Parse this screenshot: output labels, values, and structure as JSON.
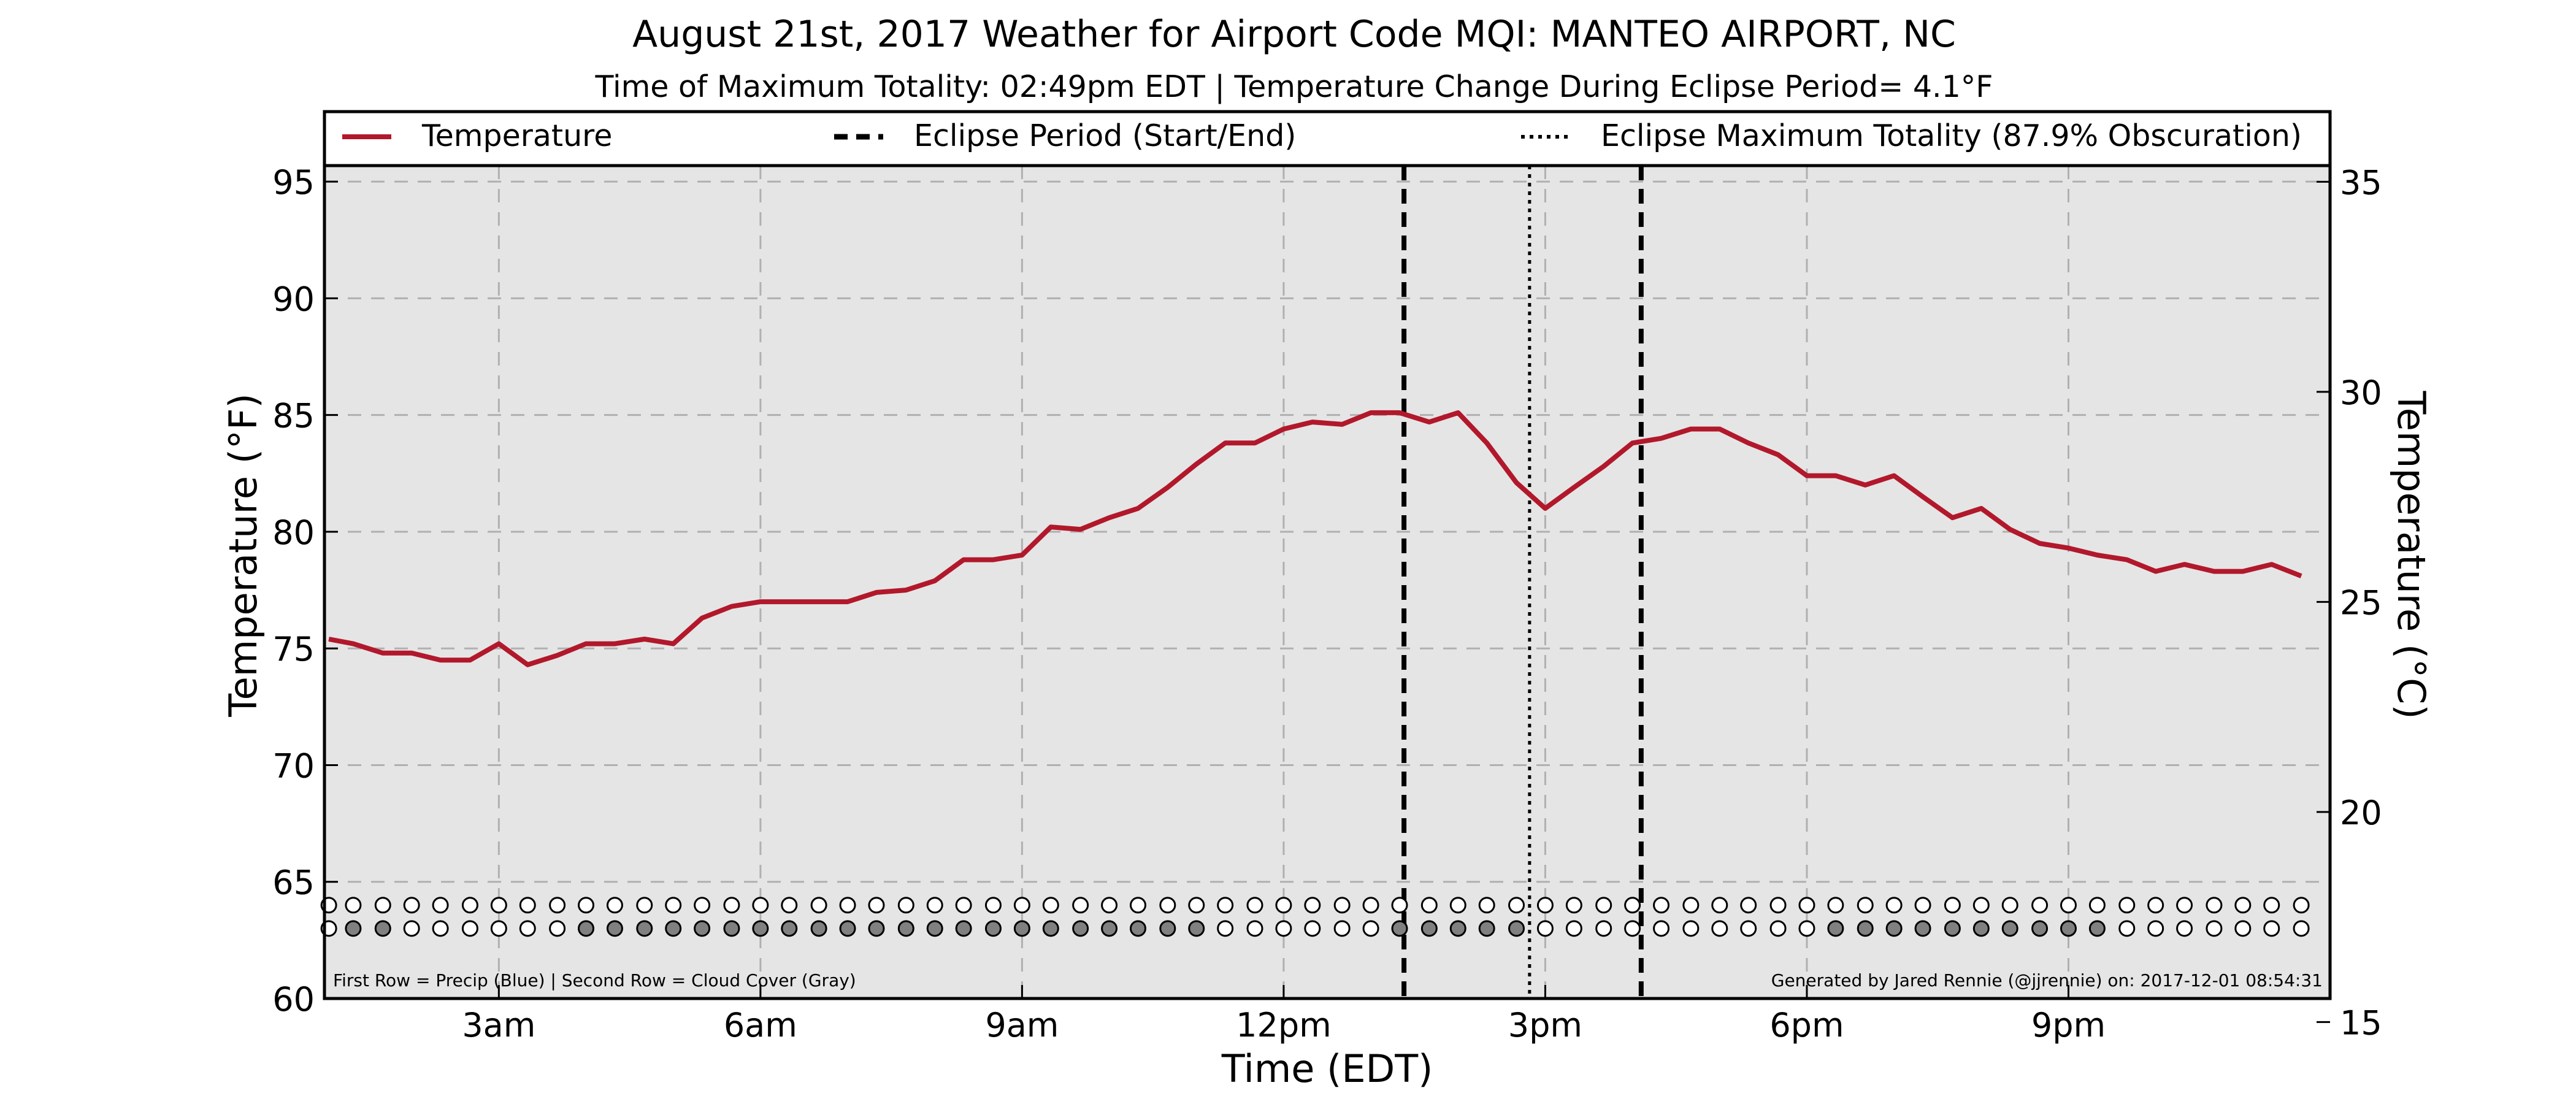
{
  "chart_data": {
    "type": "line",
    "title": "August 21st, 2017 Weather for Airport Code MQI: MANTEO AIRPORT, NC",
    "subtitle": "Time of Maximum Totality: 02:49pm EDT | Temperature Change During Eclipse Period= 4.1°F",
    "xlabel": "Time (EDT)",
    "ylabel": "Temperature (°F)",
    "ylabel_right": "Temperature (°C)",
    "xlim": [
      1,
      24
    ],
    "ylim": [
      60,
      98
    ],
    "ylim_right": [
      15.56,
      36.67
    ],
    "x_ticks": [
      {
        "x": 3,
        "label": "3am"
      },
      {
        "x": 6,
        "label": "6am"
      },
      {
        "x": 9,
        "label": "9am"
      },
      {
        "x": 12,
        "label": "12pm"
      },
      {
        "x": 15,
        "label": "3pm"
      },
      {
        "x": 18,
        "label": "6pm"
      },
      {
        "x": 21,
        "label": "9pm"
      }
    ],
    "y_ticks": [
      60,
      65,
      70,
      75,
      80,
      85,
      90,
      95
    ],
    "y_ticks_right": [
      15,
      20,
      25,
      30,
      35
    ],
    "grid": true,
    "legend": {
      "placement": "top",
      "entries": [
        {
          "label": "Temperature",
          "style": "solid"
        },
        {
          "label": "Eclipse Period (Start/End)",
          "style": "dashed"
        },
        {
          "label": "Eclipse Maximum Totality (87.9% Obscuration)",
          "style": "dotted"
        }
      ]
    },
    "series": [
      {
        "name": "Temperature",
        "color": "#b2182b",
        "x": [
          1.05,
          1.33,
          1.67,
          2.0,
          2.33,
          2.67,
          3.0,
          3.33,
          3.67,
          4.0,
          4.33,
          4.67,
          5.0,
          5.33,
          5.67,
          6.0,
          6.33,
          6.67,
          7.0,
          7.33,
          7.67,
          8.0,
          8.33,
          8.67,
          9.0,
          9.33,
          9.67,
          10.0,
          10.33,
          10.67,
          11.0,
          11.33,
          11.67,
          12.0,
          12.33,
          12.67,
          13.0,
          13.33,
          13.67,
          14.0,
          14.33,
          14.67,
          15.0,
          15.33,
          15.67,
          16.0,
          16.33,
          16.67,
          17.0,
          17.33,
          17.67,
          18.0,
          18.33,
          18.67,
          19.0,
          19.33,
          19.67,
          20.0,
          20.33,
          20.67,
          21.0,
          21.33,
          21.67,
          22.0,
          22.33,
          22.67,
          23.0,
          23.33,
          23.67
        ],
        "values": [
          75.4,
          75.2,
          74.8,
          74.8,
          74.5,
          74.5,
          75.2,
          74.3,
          74.7,
          75.2,
          75.2,
          75.4,
          75.2,
          76.3,
          76.8,
          77.0,
          77.0,
          77.0,
          77.0,
          77.4,
          77.5,
          77.9,
          78.8,
          78.8,
          79.0,
          80.2,
          80.1,
          80.6,
          81.0,
          81.9,
          82.9,
          83.8,
          83.8,
          84.4,
          84.7,
          84.6,
          85.1,
          85.1,
          84.7,
          85.1,
          83.8,
          82.1,
          81.0,
          81.9,
          82.8,
          83.8,
          84.0,
          84.4,
          84.4,
          83.8,
          83.3,
          82.4,
          82.4,
          82.0,
          82.4,
          81.5,
          80.6,
          81.0,
          80.1,
          79.5,
          79.3,
          79.0,
          78.8,
          78.3,
          78.6,
          78.3,
          78.3,
          78.6,
          78.1
        ]
      }
    ],
    "eclipse_start": 13.38,
    "eclipse_end": 16.1,
    "eclipse_max": 14.82,
    "indicator_rows": {
      "row_temps": [
        64.0,
        63.0
      ],
      "x": [
        1.05,
        1.33,
        1.67,
        2.0,
        2.33,
        2.67,
        3.0,
        3.33,
        3.67,
        4.0,
        4.33,
        4.67,
        5.0,
        5.33,
        5.67,
        6.0,
        6.33,
        6.67,
        7.0,
        7.33,
        7.67,
        8.0,
        8.33,
        8.67,
        9.0,
        9.33,
        9.67,
        10.0,
        10.33,
        10.67,
        11.0,
        11.33,
        11.67,
        12.0,
        12.33,
        12.67,
        13.0,
        13.33,
        13.67,
        14.0,
        14.33,
        14.67,
        15.0,
        15.33,
        15.67,
        16.0,
        16.33,
        16.67,
        17.0,
        17.33,
        17.67,
        18.0,
        18.33,
        18.67,
        19.0,
        19.33,
        19.67,
        20.0,
        20.33,
        20.67,
        21.0,
        21.33,
        21.67,
        22.0,
        22.33,
        22.67,
        23.0,
        23.33,
        23.67
      ],
      "precip": [
        0,
        0,
        0,
        0,
        0,
        0,
        0,
        0,
        0,
        0,
        0,
        0,
        0,
        0,
        0,
        0,
        0,
        0,
        0,
        0,
        0,
        0,
        0,
        0,
        0,
        0,
        0,
        0,
        0,
        0,
        0,
        0,
        0,
        0,
        0,
        0,
        0,
        0,
        0,
        0,
        0,
        0,
        0,
        0,
        0,
        0,
        0,
        0,
        0,
        0,
        0,
        0,
        0,
        0,
        0,
        0,
        0,
        0,
        0,
        0,
        0,
        0,
        0,
        0,
        0,
        0,
        0,
        0,
        0
      ],
      "cloud": [
        0,
        1,
        1,
        0,
        0,
        0,
        0,
        0,
        0,
        1,
        1,
        1,
        1,
        1,
        1,
        1,
        1,
        1,
        1,
        1,
        1,
        1,
        1,
        1,
        1,
        1,
        1,
        1,
        1,
        1,
        1,
        0,
        0,
        0,
        0,
        0,
        0,
        1,
        1,
        1,
        1,
        1,
        0,
        0,
        0,
        0,
        0,
        0,
        0,
        0,
        0,
        0,
        1,
        1,
        1,
        1,
        1,
        1,
        1,
        1,
        1,
        1,
        0,
        0,
        0,
        0,
        0,
        0,
        0
      ],
      "precip_color": "#ffffff",
      "cloud_color": "#808080"
    },
    "footnote_left": "First Row = Precip (Blue) | Second Row = Cloud Cover (Gray)",
    "footnote_right": "Generated by Jared Rennie (@jjrennie) on: 2017-12-01 08:54:31",
    "colors": {
      "plot_background": "#e5e5e5",
      "line": "#b2182b",
      "grid": "#b0b0b0"
    }
  }
}
